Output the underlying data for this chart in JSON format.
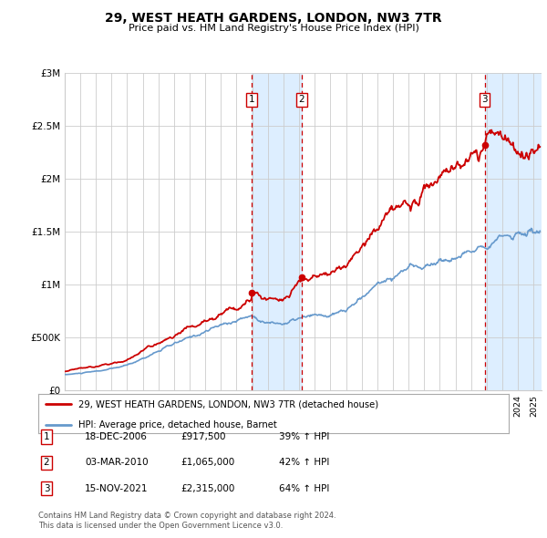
{
  "title": "29, WEST HEATH GARDENS, LONDON, NW3 7TR",
  "subtitle": "Price paid vs. HM Land Registry's House Price Index (HPI)",
  "ylabel_ticks": [
    "£0",
    "£500K",
    "£1M",
    "£1.5M",
    "£2M",
    "£2.5M",
    "£3M"
  ],
  "ytick_values": [
    0,
    500000,
    1000000,
    1500000,
    2000000,
    2500000,
    3000000
  ],
  "ylim": [
    0,
    3000000
  ],
  "xlim_start": 1995.0,
  "xlim_end": 2025.5,
  "transactions": [
    {
      "label": "1",
      "date": "18-DEC-2006",
      "price": 917500,
      "x": 2006.96,
      "pct": "39%",
      "dir": "↑"
    },
    {
      "label": "2",
      "date": "03-MAR-2010",
      "price": 1065000,
      "x": 2010.17,
      "pct": "42%",
      "dir": "↑"
    },
    {
      "label": "3",
      "date": "15-NOV-2021",
      "price": 2315000,
      "x": 2021.87,
      "pct": "64%",
      "dir": "↑"
    }
  ],
  "legend_line1": "29, WEST HEATH GARDENS, LONDON, NW3 7TR (detached house)",
  "legend_line2": "HPI: Average price, detached house, Barnet",
  "footer1": "Contains HM Land Registry data © Crown copyright and database right 2024.",
  "footer2": "This data is licensed under the Open Government Licence v3.0.",
  "red_color": "#cc0000",
  "blue_color": "#6699cc",
  "shade_color": "#ddeeff",
  "grid_color": "#cccccc",
  "background_color": "#ffffff",
  "hpi_x": [
    1995,
    1996,
    1997,
    1998,
    1999,
    2000,
    2001,
    2002,
    2003,
    2004,
    2005,
    2006,
    2007,
    2008,
    2009,
    2010,
    2011,
    2012,
    2013,
    2014,
    2015,
    2016,
    2017,
    2018,
    2019,
    2020,
    2021,
    2022,
    2023,
    2024,
    2025.3
  ],
  "hpi_y": [
    145000,
    158000,
    175000,
    200000,
    235000,
    300000,
    370000,
    430000,
    490000,
    555000,
    610000,
    660000,
    700000,
    640000,
    630000,
    670000,
    690000,
    700000,
    750000,
    870000,
    1000000,
    1080000,
    1150000,
    1180000,
    1220000,
    1250000,
    1300000,
    1430000,
    1450000,
    1480000,
    1500000
  ],
  "prop_x": [
    1995,
    1996,
    1997,
    1998,
    1999,
    2000,
    2001,
    2002,
    2003,
    2004,
    2005,
    2006,
    2006.96,
    2007,
    2008,
    2009,
    2010.17,
    2011,
    2012,
    2013,
    2014,
    2015,
    2016,
    2017,
    2018,
    2019,
    2020,
    2021,
    2021.87,
    2022.3,
    2022.8,
    2023.3,
    2023.8,
    2024.3,
    2024.8,
    2025.2
  ],
  "prop_y": [
    175000,
    195000,
    215000,
    250000,
    295000,
    370000,
    450000,
    520000,
    590000,
    665000,
    730000,
    820000,
    917500,
    940000,
    870000,
    880000,
    1065000,
    1090000,
    1100000,
    1180000,
    1380000,
    1540000,
    1680000,
    1820000,
    1920000,
    1980000,
    2050000,
    2180000,
    2315000,
    2420000,
    2350000,
    2280000,
    2200000,
    2230000,
    2260000,
    2250000
  ]
}
